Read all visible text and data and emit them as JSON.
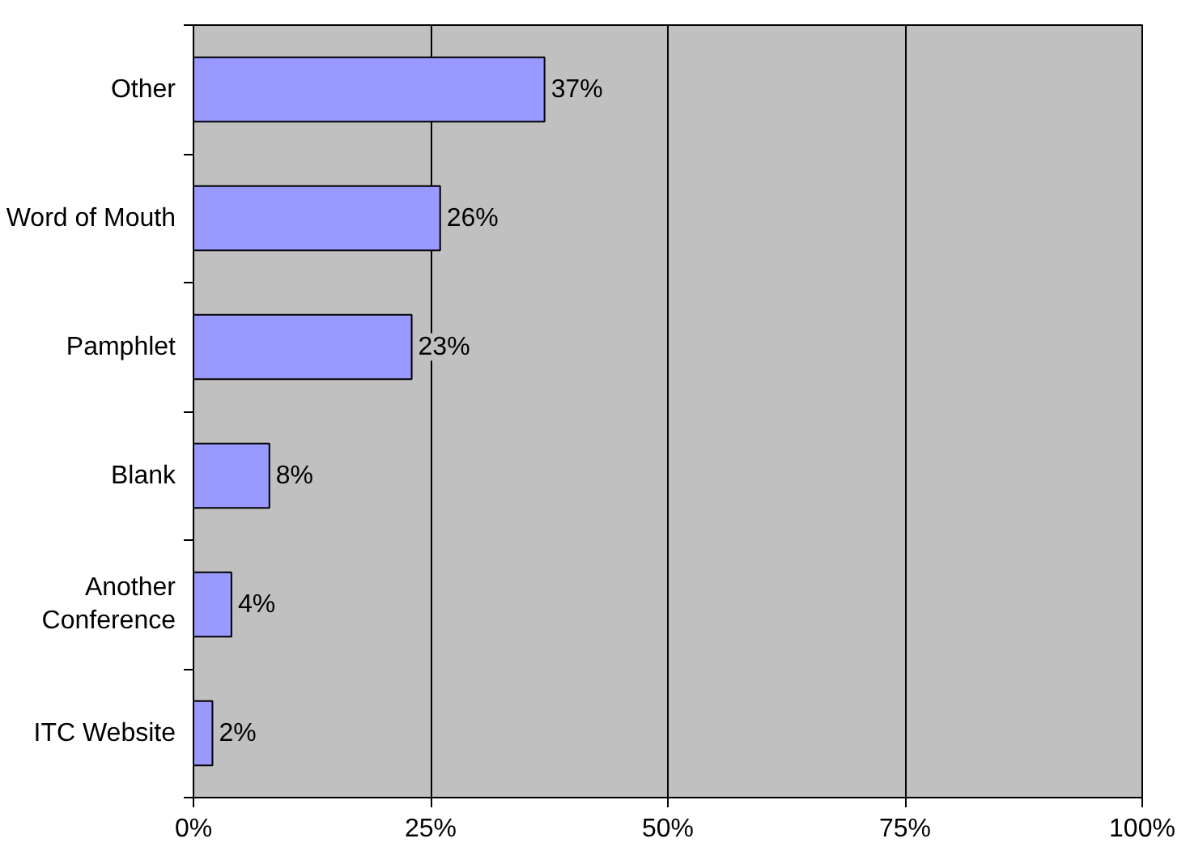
{
  "chart_data": {
    "type": "bar",
    "orientation": "horizontal",
    "categories": [
      "Other",
      "Word of Mouth",
      "Pamphlet",
      "Blank",
      "Another\nConference",
      "ITC Website"
    ],
    "values": [
      37,
      26,
      23,
      8,
      4,
      2
    ],
    "value_labels": [
      "37%",
      "26%",
      "23%",
      "8%",
      "4%",
      "2%"
    ],
    "color": "#9999ff",
    "xlim": [
      0,
      100
    ],
    "xticks": [
      {
        "value": 0,
        "label": "0%"
      },
      {
        "value": 25,
        "label": "25%"
      },
      {
        "value": 50,
        "label": "50%"
      },
      {
        "value": 75,
        "label": "75%"
      },
      {
        "value": 100,
        "label": "100%"
      }
    ],
    "grid": "x"
  }
}
